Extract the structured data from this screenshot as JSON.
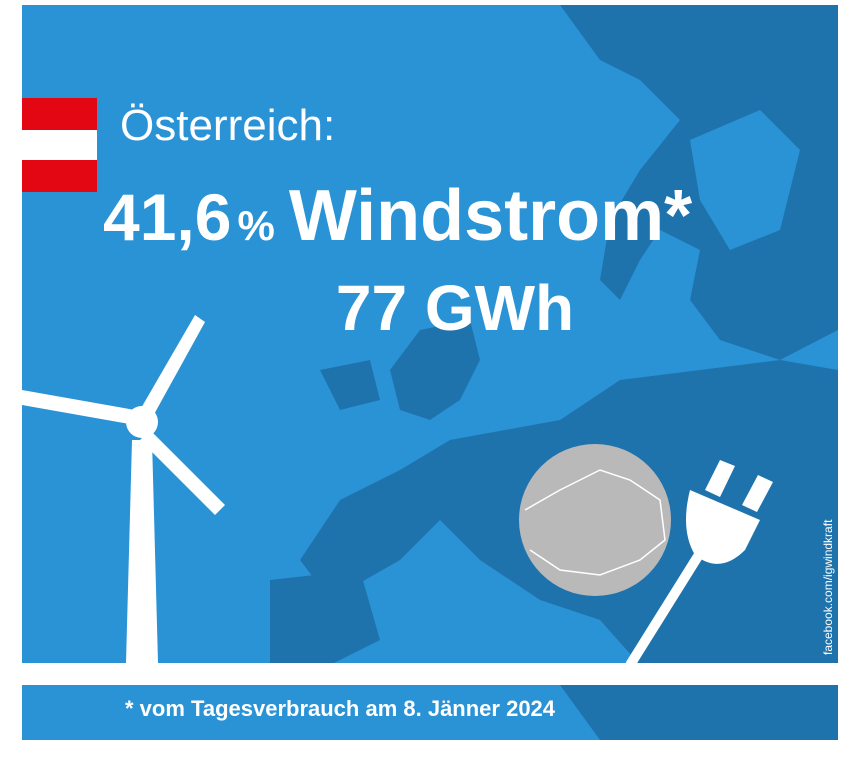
{
  "header": {
    "country": "Österreich:",
    "share": "41,6",
    "share_unit": "%",
    "label": "Windstrom*",
    "energy": "77 GWh"
  },
  "footnote": "* vom Tagesverbrauch am 8. Jänner 2024",
  "credit": "facebook.com/igwindkraft"
}
